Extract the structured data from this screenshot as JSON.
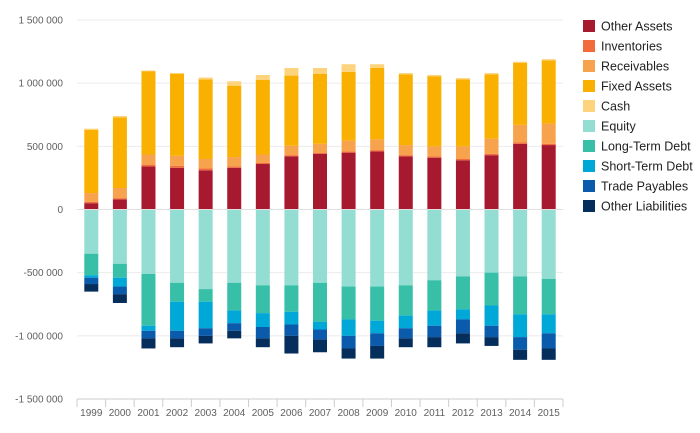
{
  "chart_data": {
    "type": "bar",
    "stacked": true,
    "categories": [
      "1999",
      "2000",
      "2001",
      "2002",
      "2003",
      "2004",
      "2005",
      "2006",
      "2007",
      "2008",
      "2009",
      "2010",
      "2011",
      "2012",
      "2013",
      "2014",
      "2015"
    ],
    "ylim": [
      -1500000,
      1500000
    ],
    "yticks": [
      1500000,
      1000000,
      500000,
      0,
      -500000,
      -1000000,
      -1500000
    ],
    "ytick_labels": [
      "1 500 000",
      "1 000 000",
      "500 000",
      "0",
      "-500 000",
      "-1 000 000",
      "-1 500 000"
    ],
    "legend_position": "right",
    "series": [
      {
        "name": "Other Assets",
        "color": "#a6192e",
        "values": [
          50000,
          80000,
          340000,
          330000,
          310000,
          330000,
          360000,
          420000,
          440000,
          450000,
          460000,
          420000,
          410000,
          390000,
          430000,
          520000,
          510000
        ]
      },
      {
        "name": "Inventories",
        "color": "#f26b3a",
        "values": [
          10000,
          10000,
          15000,
          15000,
          15000,
          10000,
          10000,
          10000,
          10000,
          10000,
          10000,
          10000,
          10000,
          10000,
          10000,
          10000,
          10000
        ]
      },
      {
        "name": "Receivables",
        "color": "#f7a24d",
        "values": [
          70000,
          80000,
          80000,
          80000,
          75000,
          75000,
          65000,
          75000,
          70000,
          85000,
          85000,
          80000,
          80000,
          100000,
          120000,
          140000,
          160000
        ]
      },
      {
        "name": "Fixed Assets",
        "color": "#f9b000",
        "values": [
          500000,
          560000,
          660000,
          650000,
          630000,
          565000,
          590000,
          555000,
          555000,
          545000,
          565000,
          560000,
          555000,
          530000,
          510000,
          490000,
          500000
        ]
      },
      {
        "name": "Cash",
        "color": "#fdd37d",
        "values": [
          10000,
          10000,
          5000,
          5000,
          15000,
          35000,
          40000,
          60000,
          45000,
          60000,
          30000,
          10000,
          10000,
          10000,
          10000,
          10000,
          10000
        ]
      },
      {
        "name": "Equity",
        "color": "#94ddd2",
        "values": [
          -350000,
          -430000,
          -510000,
          -580000,
          -630000,
          -580000,
          -600000,
          -600000,
          -580000,
          -610000,
          -610000,
          -600000,
          -560000,
          -530000,
          -500000,
          -530000,
          -550000
        ]
      },
      {
        "name": "Long-Term Debt",
        "color": "#38bfa8",
        "values": [
          -170000,
          -110000,
          -410000,
          -150000,
          -100000,
          -220000,
          -220000,
          -210000,
          -310000,
          -260000,
          -270000,
          -240000,
          -240000,
          -260000,
          -260000,
          -300000,
          -280000
        ]
      },
      {
        "name": "Short-Term Debt",
        "color": "#00a8d8",
        "values": [
          -20000,
          -70000,
          -40000,
          -230000,
          -210000,
          -100000,
          -110000,
          -100000,
          -60000,
          -130000,
          -100000,
          -100000,
          -120000,
          -80000,
          -160000,
          -180000,
          -150000
        ]
      },
      {
        "name": "Trade Payables",
        "color": "#0a5bab",
        "values": [
          -50000,
          -60000,
          -60000,
          -60000,
          -60000,
          -60000,
          -90000,
          -90000,
          -80000,
          -100000,
          -100000,
          -80000,
          -90000,
          -110000,
          -90000,
          -100000,
          -120000
        ]
      },
      {
        "name": "Other Liabilities",
        "color": "#062e5c",
        "values": [
          -60000,
          -70000,
          -80000,
          -70000,
          -60000,
          -60000,
          -70000,
          -140000,
          -100000,
          -80000,
          -100000,
          -70000,
          -80000,
          -80000,
          -70000,
          -80000,
          -90000
        ]
      }
    ]
  }
}
